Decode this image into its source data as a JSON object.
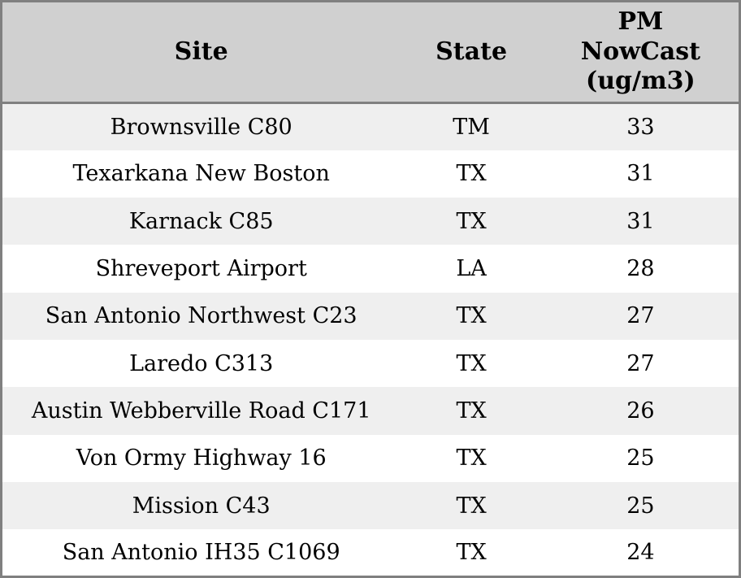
{
  "chart_data": {
    "type": "table",
    "columns": [
      "Site",
      "State",
      "PM NowCast (ug/m3)"
    ],
    "rows": [
      {
        "site": "Brownsville C80",
        "state": "TM",
        "pm_nowcast": 33
      },
      {
        "site": "Texarkana New Boston",
        "state": "TX",
        "pm_nowcast": 31
      },
      {
        "site": "Karnack C85",
        "state": "TX",
        "pm_nowcast": 31
      },
      {
        "site": "Shreveport Airport",
        "state": "LA",
        "pm_nowcast": 28
      },
      {
        "site": "San Antonio Northwest C23",
        "state": "TX",
        "pm_nowcast": 27
      },
      {
        "site": "Laredo C313",
        "state": "TX",
        "pm_nowcast": 27
      },
      {
        "site": "Austin Webberville Road C171",
        "state": "TX",
        "pm_nowcast": 26
      },
      {
        "site": "Von Ormy Highway 16",
        "state": "TX",
        "pm_nowcast": 25
      },
      {
        "site": "Mission C43",
        "state": "TX",
        "pm_nowcast": 25
      },
      {
        "site": "San Antonio IH35 C1069",
        "state": "TX",
        "pm_nowcast": 24
      }
    ]
  },
  "colors": {
    "header_bg": "#d0d0d0",
    "row_alt_bg": "#efefef",
    "row_bg": "#ffffff",
    "border": "#808080",
    "text": "#000000"
  }
}
